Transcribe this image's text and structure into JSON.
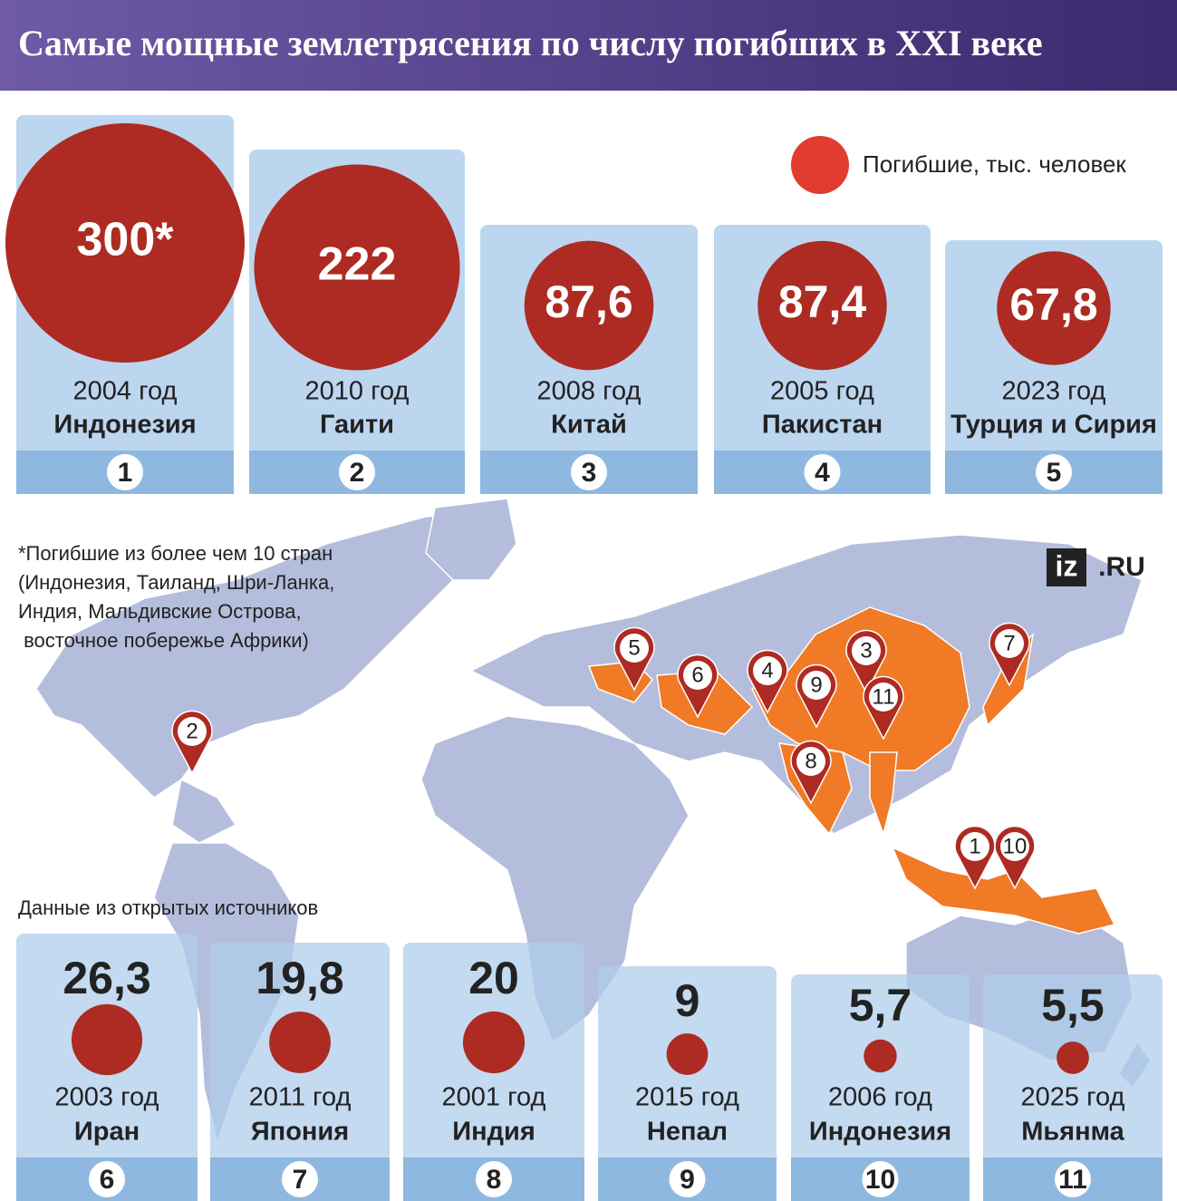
{
  "header": {
    "title": "Самые мощные землетрясения по числу погибших в XXI веке"
  },
  "legend": "Погибшие, тыс. человек",
  "footnote": [
    "*Погибшие из более чем 10 стран",
    "(Индонезия, Таиланд, Шри-Ланка,",
    "Индия, Мальдивские Острова,",
    " восточное побережье Африки)"
  ],
  "source": "Данные из открытых источников",
  "logo": {
    "brand": "iz",
    "domain": ".RU"
  },
  "quakes": [
    {
      "rank": 1,
      "deaths": 300,
      "deaths_label": "300*",
      "year": "2004 год",
      "country": "Индонезия"
    },
    {
      "rank": 2,
      "deaths": 222,
      "deaths_label": "222",
      "year": "2010 год",
      "country": "Гаити"
    },
    {
      "rank": 3,
      "deaths": 87.6,
      "deaths_label": "87,6",
      "year": "2008 год",
      "country": "Китай"
    },
    {
      "rank": 4,
      "deaths": 87.4,
      "deaths_label": "87,4",
      "year": "2005 год",
      "country": "Пакистан"
    },
    {
      "rank": 5,
      "deaths": 67.8,
      "deaths_label": "67,8",
      "year": "2023 год",
      "country": "Турция и Сирия"
    },
    {
      "rank": 6,
      "deaths": 26.3,
      "deaths_label": "26,3",
      "year": "2003 год",
      "country": "Иран"
    },
    {
      "rank": 7,
      "deaths": 19.8,
      "deaths_label": "19,8",
      "year": "2011 год",
      "country": "Япония"
    },
    {
      "rank": 8,
      "deaths": 20,
      "deaths_label": "20",
      "year": "2001 год",
      "country": "Индия"
    },
    {
      "rank": 9,
      "deaths": 9,
      "deaths_label": "9",
      "year": "2015 год",
      "country": "Непал"
    },
    {
      "rank": 10,
      "deaths": 5.7,
      "deaths_label": "5,7",
      "year": "2006 год",
      "country": "Индонезия"
    },
    {
      "rank": 11,
      "deaths": 5.5,
      "deaths_label": "5,5",
      "year": "2025 год",
      "country": "Мьянма"
    }
  ]
}
